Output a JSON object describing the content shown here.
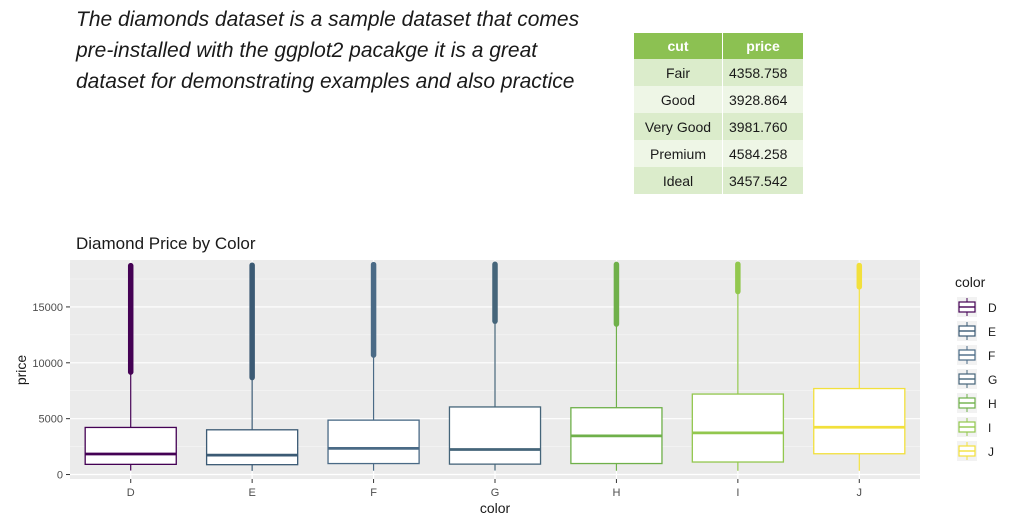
{
  "intro": {
    "text": "The diamonds dataset is a sample dataset that comes pre-installed with the ggplot2 pacakge it is a great dataset for demonstrating examples and also practice"
  },
  "summary_table": {
    "headers": [
      "cut",
      "price"
    ],
    "rows": [
      {
        "cut": "Fair",
        "price": "4358.758"
      },
      {
        "cut": "Good",
        "price": "3928.864"
      },
      {
        "cut": "Very Good",
        "price": "3981.760"
      },
      {
        "cut": "Premium",
        "price": "4584.258"
      },
      {
        "cut": "Ideal",
        "price": "3457.542"
      }
    ],
    "header_color": "#8cc152"
  },
  "chart_data": {
    "type": "box",
    "title": "Diamond Price by Color",
    "xlabel": "color",
    "ylabel": "price",
    "ylim": [
      -400,
      19200
    ],
    "yticks": [
      0,
      5000,
      10000,
      15000
    ],
    "ytick_labels": [
      "0",
      "5000",
      "10000",
      "15000"
    ],
    "categories": [
      "D",
      "E",
      "F",
      "G",
      "H",
      "I",
      "J"
    ],
    "legend_title": "color",
    "legend_position": "right",
    "grid": true,
    "boxes": [
      {
        "name": "D",
        "min": 357,
        "q1": 911,
        "median": 1838,
        "q3": 4214,
        "whisker_high": 9170,
        "outlier_low": 9170,
        "max": 18693,
        "color": "#440154"
      },
      {
        "name": "E",
        "min": 326,
        "q1": 882,
        "median": 1739,
        "q3": 4003,
        "whisker_high": 8680,
        "outlier_low": 8680,
        "max": 18731,
        "color": "#3b5a74"
      },
      {
        "name": "F",
        "min": 342,
        "q1": 982,
        "median": 2344,
        "q3": 4868,
        "whisker_high": 10690,
        "outlier_low": 10690,
        "max": 18791,
        "color": "#4a6a86"
      },
      {
        "name": "G",
        "min": 354,
        "q1": 931,
        "median": 2242,
        "q3": 6048,
        "whisker_high": 13730,
        "outlier_low": 13730,
        "max": 18818,
        "color": "#45657a"
      },
      {
        "name": "H",
        "min": 337,
        "q1": 984,
        "median": 3460,
        "q3": 5980,
        "whisker_high": 13470,
        "outlier_low": 13470,
        "max": 18803,
        "color": "#6fb04a"
      },
      {
        "name": "I",
        "min": 334,
        "q1": 1120,
        "median": 3730,
        "q3": 7202,
        "whisker_high": 16380,
        "outlier_low": 16380,
        "max": 18823,
        "color": "#92c74e"
      },
      {
        "name": "J",
        "min": 335,
        "q1": 1860,
        "median": 4234,
        "q3": 7695,
        "whisker_high": 16800,
        "outlier_low": 16800,
        "max": 18710,
        "color": "#f2e03c"
      }
    ]
  }
}
